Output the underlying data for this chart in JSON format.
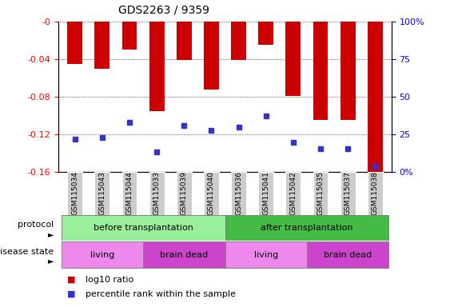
{
  "title": "GDS2263 / 9359",
  "samples": [
    "GSM115034",
    "GSM115043",
    "GSM115044",
    "GSM115033",
    "GSM115039",
    "GSM115040",
    "GSM115036",
    "GSM115041",
    "GSM115042",
    "GSM115035",
    "GSM115037",
    "GSM115038"
  ],
  "log10_ratio": [
    -0.045,
    -0.05,
    -0.03,
    -0.095,
    -0.041,
    -0.072,
    -0.041,
    -0.025,
    -0.079,
    -0.105,
    -0.105,
    -0.162
  ],
  "percentile_rank": [
    22,
    23,
    33,
    13.5,
    31,
    27.5,
    30,
    37,
    19.5,
    15.5,
    15.5,
    4
  ],
  "ylim_left": [
    -0.16,
    0.0
  ],
  "ylim_right": [
    0,
    100
  ],
  "yticks_left": [
    -0.16,
    -0.12,
    -0.08,
    -0.04,
    0.0
  ],
  "yticks_right": [
    0,
    25,
    50,
    75,
    100
  ],
  "ytick_labels_left": [
    "-0.16",
    "-0.12",
    "-0.08",
    "-0.04",
    "-0"
  ],
  "ytick_labels_right": [
    "0%",
    "25",
    "50",
    "75",
    "100%"
  ],
  "bar_color": "#cc0000",
  "dot_color": "#3333cc",
  "protocol_groups": [
    {
      "label": "before transplantation",
      "start": 0,
      "end": 6,
      "color": "#99ee99"
    },
    {
      "label": "after transplantation",
      "start": 6,
      "end": 12,
      "color": "#44bb44"
    }
  ],
  "disease_groups": [
    {
      "label": "living",
      "start": 0,
      "end": 3,
      "color": "#ee88ee"
    },
    {
      "label": "brain dead",
      "start": 3,
      "end": 6,
      "color": "#cc44cc"
    },
    {
      "label": "living",
      "start": 6,
      "end": 9,
      "color": "#ee88ee"
    },
    {
      "label": "brain dead",
      "start": 9,
      "end": 12,
      "color": "#cc44cc"
    }
  ],
  "legend_items": [
    {
      "label": "log10 ratio",
      "color": "#cc0000",
      "marker": "s"
    },
    {
      "label": "percentile rank within the sample",
      "color": "#3333cc",
      "marker": "s"
    }
  ],
  "bar_width": 0.55
}
